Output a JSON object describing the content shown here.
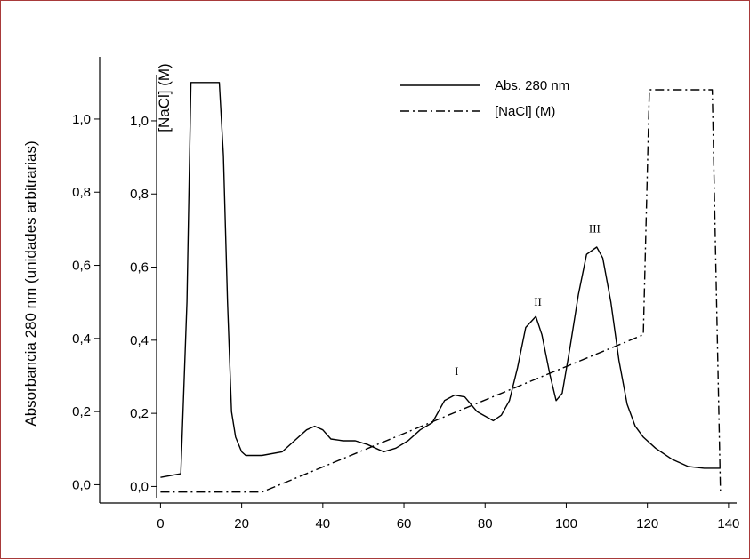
{
  "frame": {
    "border_color": "#a83a3a"
  },
  "chart_data": {
    "type": "line",
    "y_left_label": "Absorbancia 280 nm (unidades arbitrarias)",
    "y_right_label": "[NaCl] (M)",
    "xlim": [
      -15,
      142
    ],
    "ylim": [
      -0.05,
      1.17
    ],
    "x_ticks": [
      "0",
      "20",
      "40",
      "60",
      "80",
      "100",
      "120",
      "140"
    ],
    "x_tick_values": [
      0,
      20,
      40,
      60,
      80,
      100,
      120,
      140
    ],
    "y_left_ticks": [
      "0,0",
      "0,2",
      "0,4",
      "0,6",
      "0,8",
      "1,0"
    ],
    "y_left_tick_values": [
      0,
      0.2,
      0.4,
      0.6,
      0.8,
      1.0
    ],
    "y_right_ticks": [
      "0,0",
      "0,2",
      "0,4",
      "0,6",
      "0,8",
      "1,0"
    ],
    "y_right_tick_values": [
      0,
      0.2,
      0.4,
      0.6,
      0.8,
      1.0
    ],
    "legend": {
      "position": "top-right",
      "entries": [
        "Abs. 280 nm",
        "[NaCl] (M)"
      ]
    },
    "peak_labels": [
      {
        "text": "I",
        "x": 73,
        "y": 0.3
      },
      {
        "text": "II",
        "x": 93,
        "y": 0.49
      },
      {
        "text": "III",
        "x": 107,
        "y": 0.69
      }
    ],
    "series": [
      {
        "name": "Abs. 280 nm",
        "style": "solid",
        "x": [
          0,
          5,
          6.5,
          7.5,
          14.5,
          15.5,
          16.5,
          17.5,
          18.5,
          20,
          21,
          25,
          30,
          33,
          36,
          38,
          40,
          42,
          45,
          48,
          51,
          55,
          58,
          61,
          64,
          67,
          70,
          72.5,
          75,
          78,
          82,
          84,
          86,
          88,
          90,
          92.5,
          94,
          96,
          97.5,
          99,
          101,
          103,
          105,
          107.5,
          109,
          111,
          113,
          115,
          117,
          119,
          122,
          126,
          130,
          134,
          138
        ],
        "y": [
          0.02,
          0.03,
          0.5,
          1.1,
          1.1,
          0.9,
          0.5,
          0.2,
          0.13,
          0.09,
          0.08,
          0.08,
          0.09,
          0.12,
          0.15,
          0.16,
          0.15,
          0.125,
          0.12,
          0.12,
          0.11,
          0.09,
          0.1,
          0.12,
          0.15,
          0.17,
          0.23,
          0.245,
          0.24,
          0.2,
          0.175,
          0.19,
          0.23,
          0.32,
          0.43,
          0.46,
          0.41,
          0.3,
          0.23,
          0.25,
          0.38,
          0.52,
          0.63,
          0.65,
          0.62,
          0.5,
          0.34,
          0.22,
          0.16,
          0.13,
          0.1,
          0.07,
          0.05,
          0.045,
          0.045
        ]
      },
      {
        "name": "[NaCl] (M)",
        "style": "dash-dot",
        "x": [
          0,
          25,
          119,
          119,
          120.5,
          136,
          138
        ],
        "y": [
          -0.02,
          -0.02,
          0.41,
          0.41,
          1.08,
          1.08,
          -0.02
        ]
      }
    ]
  }
}
